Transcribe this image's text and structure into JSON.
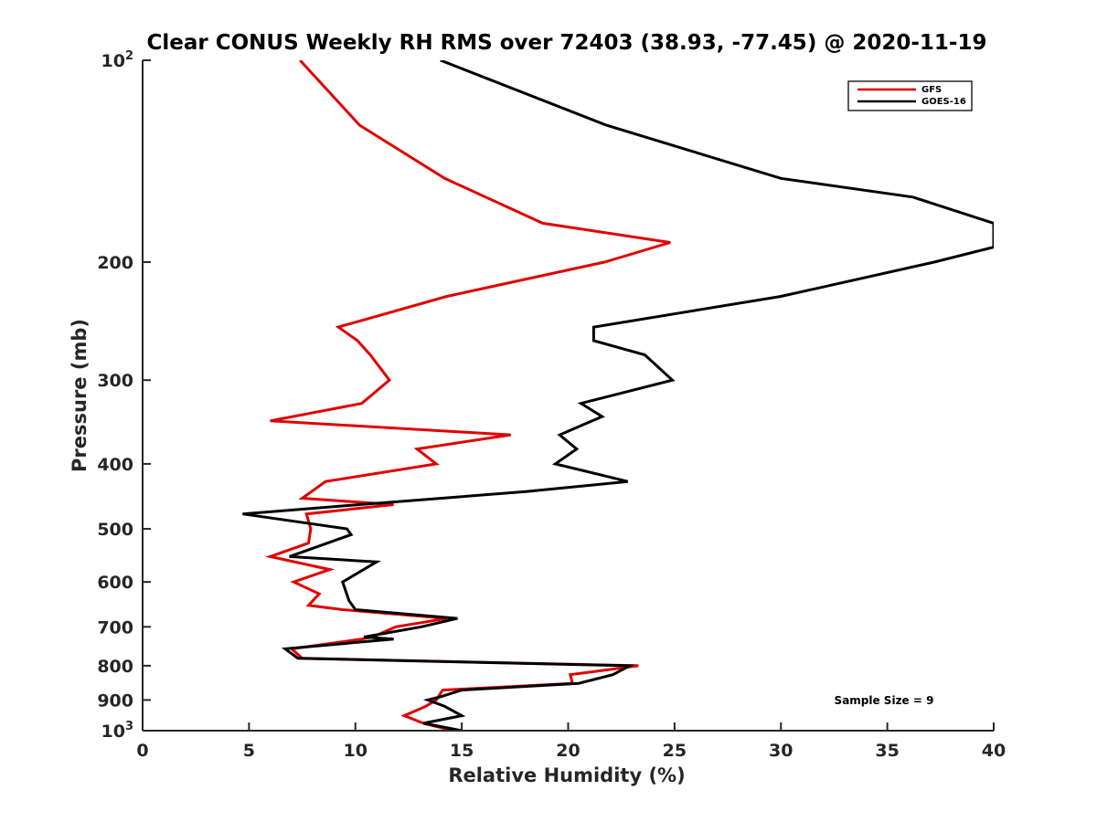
{
  "chart_data": {
    "type": "line",
    "title": "Clear CONUS Weekly RH RMS over 72403 (38.93, -77.45) @ 2020-11-19",
    "xlabel": "Relative Humidity (%)",
    "ylabel": "Pressure (mb)",
    "xlim": [
      0,
      40
    ],
    "ylim": [
      100,
      1000
    ],
    "yscale": "log",
    "y_reversed": true,
    "grid": false,
    "legend_position": "top-right",
    "x_ticks": [
      "0",
      "5",
      "10",
      "15",
      "20",
      "25",
      "30",
      "35",
      "40"
    ],
    "y_ticks": [
      {
        "value": 100,
        "base": "10",
        "exp": "2"
      },
      {
        "value": 200,
        "label": "200"
      },
      {
        "value": 300,
        "label": "300"
      },
      {
        "value": 400,
        "label": "400"
      },
      {
        "value": 500,
        "label": "500"
      },
      {
        "value": 600,
        "label": "600"
      },
      {
        "value": 700,
        "label": "700"
      },
      {
        "value": 800,
        "label": "800"
      },
      {
        "value": 900,
        "label": "900"
      },
      {
        "value": 1000,
        "base": "10",
        "exp": "3"
      }
    ],
    "annotation": "Sample Size = 9",
    "series": [
      {
        "name": "GFS",
        "color": "#e00000",
        "points": [
          [
            7.4,
            100
          ],
          [
            10.2,
            125
          ],
          [
            14.2,
            150
          ],
          [
            18.8,
            175
          ],
          [
            24.8,
            187
          ],
          [
            21.7,
            200
          ],
          [
            14.3,
            225
          ],
          [
            9.2,
            250
          ],
          [
            10.1,
            262
          ],
          [
            10.7,
            275
          ],
          [
            11.6,
            300
          ],
          [
            10.3,
            325
          ],
          [
            6.0,
            345
          ],
          [
            17.3,
            362
          ],
          [
            12.9,
            380
          ],
          [
            13.8,
            400
          ],
          [
            8.6,
            425
          ],
          [
            7.5,
            450
          ],
          [
            11.8,
            460
          ],
          [
            7.7,
            475
          ],
          [
            7.9,
            500
          ],
          [
            7.8,
            525
          ],
          [
            6.0,
            550
          ],
          [
            8.8,
            575
          ],
          [
            7.1,
            600
          ],
          [
            8.3,
            625
          ],
          [
            7.8,
            650
          ],
          [
            9.4,
            660
          ],
          [
            14.3,
            680
          ],
          [
            11.9,
            700
          ],
          [
            10.8,
            725
          ],
          [
            10.3,
            730
          ],
          [
            7.0,
            755
          ],
          [
            7.5,
            780
          ],
          [
            23.3,
            800
          ],
          [
            20.1,
            825
          ],
          [
            20.2,
            850
          ],
          [
            14.1,
            870
          ],
          [
            13.8,
            900
          ],
          [
            13.3,
            920
          ],
          [
            12.3,
            950
          ],
          [
            13.2,
            975
          ],
          [
            14.6,
            1000
          ]
        ]
      },
      {
        "name": "GOES-16",
        "color": "#000000",
        "points": [
          [
            14.0,
            100
          ],
          [
            21.8,
            125
          ],
          [
            30.0,
            150
          ],
          [
            36.2,
            160
          ],
          [
            40,
            175
          ],
          [
            40,
            190
          ],
          [
            37.2,
            200
          ],
          [
            30.0,
            225
          ],
          [
            21.2,
            250
          ],
          [
            21.2,
            262
          ],
          [
            23.6,
            275
          ],
          [
            24.9,
            300
          ],
          [
            20.6,
            325
          ],
          [
            21.6,
            340
          ],
          [
            19.6,
            362
          ],
          [
            20.4,
            380
          ],
          [
            19.4,
            400
          ],
          [
            22.8,
            425
          ],
          [
            18.0,
            440
          ],
          [
            10.2,
            460
          ],
          [
            4.7,
            475
          ],
          [
            9.6,
            500
          ],
          [
            9.8,
            510
          ],
          [
            6.9,
            550
          ],
          [
            11.0,
            560
          ],
          [
            9.4,
            600
          ],
          [
            9.7,
            640
          ],
          [
            10.0,
            660
          ],
          [
            14.8,
            680
          ],
          [
            13.1,
            700
          ],
          [
            10.4,
            725
          ],
          [
            11.8,
            730
          ],
          [
            6.7,
            755
          ],
          [
            7.3,
            780
          ],
          [
            22.9,
            800
          ],
          [
            22.1,
            825
          ],
          [
            20.5,
            850
          ],
          [
            15.0,
            870
          ],
          [
            14.0,
            890
          ],
          [
            13.4,
            900
          ],
          [
            14.2,
            920
          ],
          [
            15.0,
            950
          ],
          [
            13.2,
            975
          ],
          [
            15.0,
            1000
          ]
        ]
      }
    ]
  }
}
